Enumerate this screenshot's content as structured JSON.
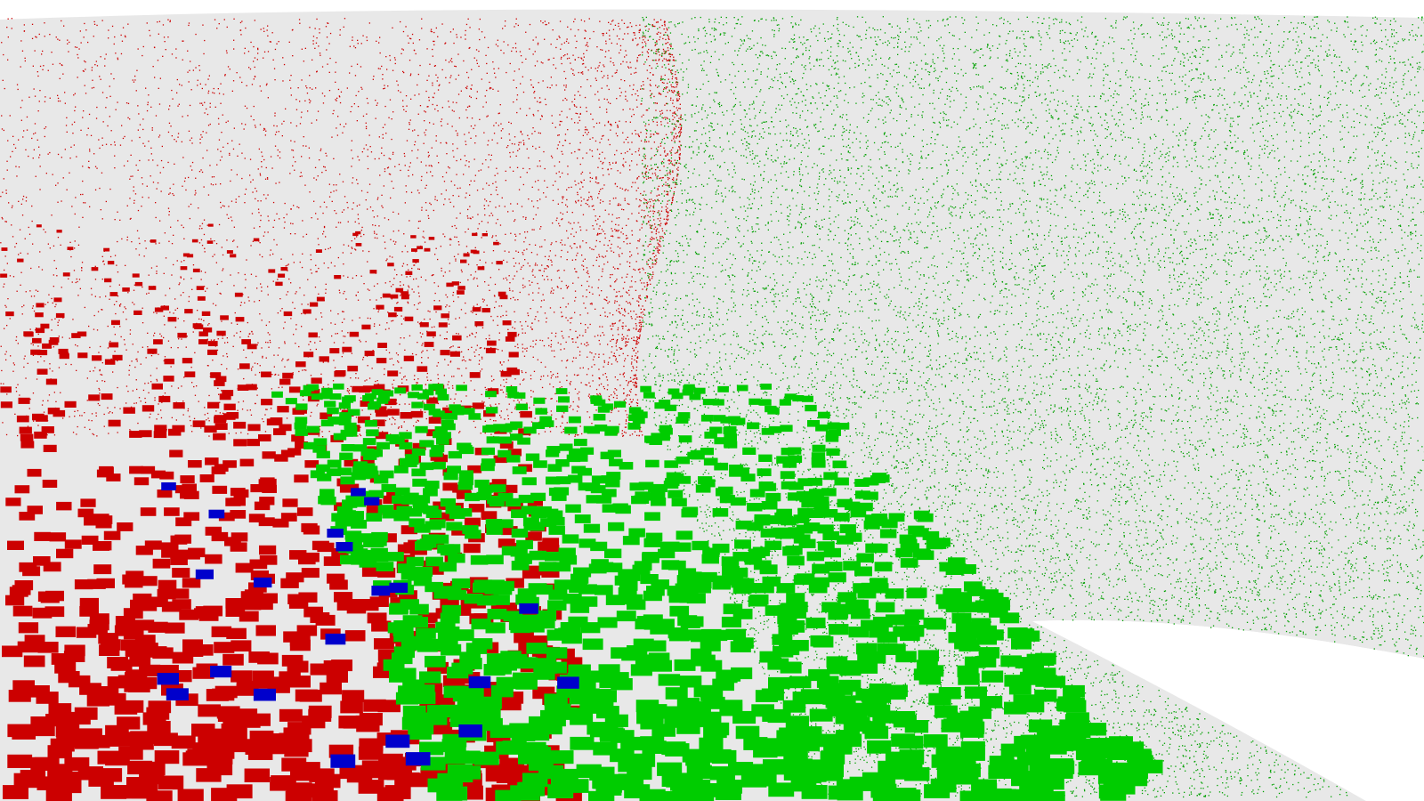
{
  "colors": {
    "background": "#ffffff",
    "surface": "#e8e8e8",
    "red": "#cc0000",
    "green_bright": "#00cc00",
    "green": "#00a000",
    "green_dark": "#008c00",
    "green_light": "#55cc22",
    "blue": "#0000cc",
    "purple": "#7a00cc"
  }
}
